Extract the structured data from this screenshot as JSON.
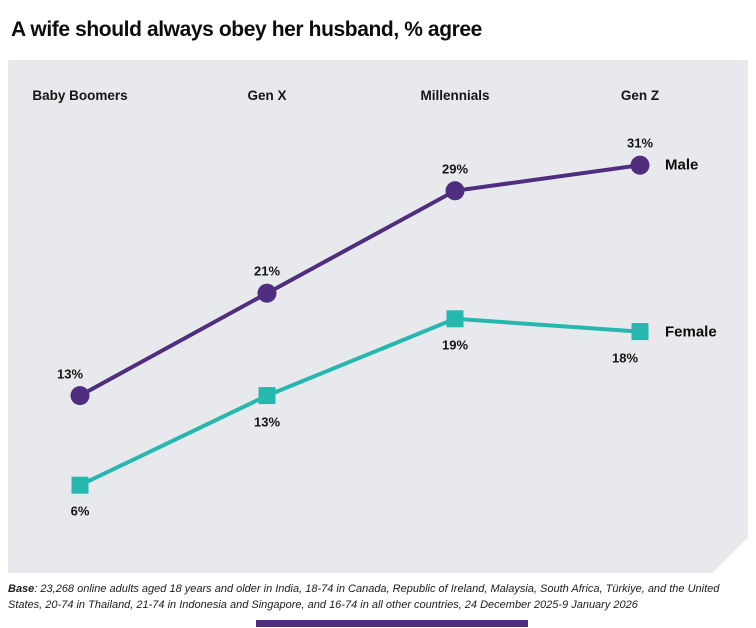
{
  "title": "A wife should always obey her husband, % agree",
  "footer": {
    "base_label": "Base",
    "base_text": ": 23,268 online adults aged 18 years and older in India, 18-74 in Canada, Republic of Ireland, Malaysia, South Africa, Türkiye, and the United States, 20-74 in Thailand, 21-74 in Indonesia and Singapore, and 16-74 in all other countries, 24 December 2025-9 January 2026"
  },
  "colors": {
    "male": "#4f2d7f",
    "female": "#26b7ae",
    "panel": "#e7e9ec",
    "text": "#111111",
    "accent_bar": "#4f2d7f"
  },
  "chart_data": {
    "type": "line",
    "title": "A wife should always obey her husband, % agree",
    "categories": [
      "Baby Boomers",
      "Gen X",
      "Millennials",
      "Gen Z"
    ],
    "series": [
      {
        "name": "Male",
        "values": [
          13,
          21,
          29,
          31
        ],
        "color": "#4f2d7f",
        "marker": "circle",
        "label_position": "above"
      },
      {
        "name": "Female",
        "values": [
          6,
          13,
          19,
          18
        ],
        "color": "#26b7ae",
        "marker": "square",
        "label_position": "below"
      }
    ],
    "value_suffix": "%",
    "xlabel": "",
    "ylabel": "",
    "ylim": [
      0,
      40
    ],
    "grid": false,
    "legend_position": "right-of-last-point"
  }
}
